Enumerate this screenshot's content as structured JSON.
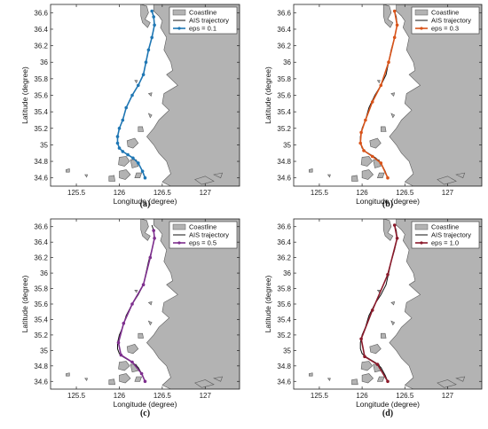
{
  "chart_data": [
    {
      "type": "line",
      "panel_label": "(a)",
      "xlabel": "Longitude (degree)",
      "ylabel": "Latitude (degree)",
      "xlim": [
        125.2,
        127.4
      ],
      "ylim": [
        34.5,
        36.7
      ],
      "xticks": [
        "125.5",
        "126",
        "126.5",
        "127"
      ],
      "yticks": [
        "34.6",
        "34.8",
        "35",
        "35.2",
        "35.4",
        "35.6",
        "35.8",
        "36",
        "36.2",
        "36.4",
        "36.6"
      ],
      "legend": [
        "Coastline",
        "AIS trajectory",
        "eps = 0.1"
      ],
      "series": [
        {
          "name": "AIS trajectory",
          "x": [
            126.38,
            126.4,
            126.41,
            126.38,
            126.34,
            126.31,
            126.28,
            126.22,
            126.15,
            126.08,
            126.04,
            126.0,
            125.98,
            125.98,
            126.0,
            126.04,
            126.1,
            126.16,
            126.22,
            126.27,
            126.3
          ],
          "y": [
            36.62,
            36.55,
            36.45,
            36.3,
            36.15,
            36.0,
            35.85,
            35.72,
            35.6,
            35.45,
            35.3,
            35.2,
            35.1,
            35.02,
            34.96,
            34.92,
            34.88,
            34.84,
            34.78,
            34.68,
            34.6
          ]
        },
        {
          "name": "eps = 0.1",
          "x": [
            126.38,
            126.4,
            126.41,
            126.38,
            126.34,
            126.31,
            126.28,
            126.22,
            126.15,
            126.08,
            126.04,
            126.0,
            125.98,
            125.98,
            126.0,
            126.04,
            126.1,
            126.16,
            126.22,
            126.27,
            126.3
          ],
          "y": [
            36.62,
            36.55,
            36.45,
            36.3,
            36.15,
            36.0,
            35.85,
            35.72,
            35.6,
            35.45,
            35.3,
            35.2,
            35.1,
            35.02,
            34.96,
            34.92,
            34.88,
            34.84,
            34.78,
            34.68,
            34.6
          ]
        }
      ],
      "colors": {
        "trajectory": "#111111",
        "eps": "#1f77b4"
      }
    },
    {
      "type": "line",
      "panel_label": "(b)",
      "xlabel": "Longitude (degree)",
      "ylabel": "Latitude (degree)",
      "xlim": [
        125.2,
        127.4
      ],
      "ylim": [
        34.5,
        36.7
      ],
      "xticks": [
        "125.5",
        "126",
        "126.5",
        "127"
      ],
      "yticks": [
        "34.6",
        "34.8",
        "35",
        "35.2",
        "35.4",
        "35.6",
        "35.8",
        "36",
        "36.2",
        "36.4",
        "36.6"
      ],
      "legend": [
        "Coastline",
        "AIS trajectory",
        "eps = 0.3"
      ],
      "series": [
        {
          "name": "AIS trajectory",
          "x": [
            126.38,
            126.4,
            126.41,
            126.38,
            126.34,
            126.31,
            126.28,
            126.22,
            126.15,
            126.08,
            126.04,
            126.0,
            125.98,
            125.98,
            126.0,
            126.04,
            126.1,
            126.16,
            126.22,
            126.27,
            126.3
          ],
          "y": [
            36.62,
            36.55,
            36.45,
            36.3,
            36.15,
            36.0,
            35.85,
            35.72,
            35.6,
            35.45,
            35.3,
            35.2,
            35.1,
            35.02,
            34.96,
            34.92,
            34.88,
            34.84,
            34.78,
            34.68,
            34.6
          ]
        },
        {
          "name": "eps = 0.3",
          "x": [
            126.38,
            126.41,
            126.38,
            126.31,
            126.22,
            126.12,
            126.04,
            125.99,
            125.98,
            126.02,
            126.12,
            126.22,
            126.3
          ],
          "y": [
            36.62,
            36.45,
            36.3,
            36.0,
            35.72,
            35.52,
            35.3,
            35.15,
            35.02,
            34.93,
            34.86,
            34.78,
            34.6
          ]
        }
      ],
      "colors": {
        "trajectory": "#111111",
        "eps": "#d95319"
      }
    },
    {
      "type": "line",
      "panel_label": "(c)",
      "xlabel": "Longitude (degree)",
      "ylabel": "Latitude (degree)",
      "xlim": [
        125.2,
        127.4
      ],
      "ylim": [
        34.5,
        36.7
      ],
      "xticks": [
        "125.5",
        "126",
        "126.5",
        "127"
      ],
      "yticks": [
        "34.6",
        "34.8",
        "35",
        "35.2",
        "35.4",
        "35.6",
        "35.8",
        "36",
        "36.2",
        "36.4",
        "36.6"
      ],
      "legend": [
        "Coastline",
        "AIS trajectory",
        "eps = 0.5"
      ],
      "series": [
        {
          "name": "AIS trajectory",
          "x": [
            126.38,
            126.4,
            126.41,
            126.38,
            126.34,
            126.31,
            126.28,
            126.22,
            126.15,
            126.08,
            126.04,
            126.0,
            125.98,
            125.98,
            126.0,
            126.04,
            126.1,
            126.16,
            126.22,
            126.27,
            126.3
          ],
          "y": [
            36.62,
            36.55,
            36.45,
            36.3,
            36.15,
            36.0,
            35.85,
            35.72,
            35.6,
            35.45,
            35.3,
            35.2,
            35.1,
            35.02,
            34.96,
            34.92,
            34.88,
            34.84,
            34.78,
            34.68,
            34.6
          ]
        },
        {
          "name": "eps = 0.5",
          "x": [
            126.4,
            126.41,
            126.36,
            126.28,
            126.15,
            126.05,
            125.99,
            126.02,
            126.15,
            126.26,
            126.3
          ],
          "y": [
            36.55,
            36.45,
            36.2,
            35.85,
            35.6,
            35.35,
            35.1,
            34.94,
            34.85,
            34.7,
            34.6
          ]
        }
      ],
      "colors": {
        "trajectory": "#111111",
        "eps": "#7e2f8e"
      }
    },
    {
      "type": "line",
      "panel_label": "(d)",
      "xlabel": "Longitude (degree)",
      "ylabel": "Latitude (degree)",
      "xlim": [
        125.2,
        127.4
      ],
      "ylim": [
        34.5,
        36.7
      ],
      "xticks": [
        "125.5",
        "126",
        "126.5",
        "127"
      ],
      "yticks": [
        "34.6",
        "34.8",
        "35",
        "35.2",
        "35.4",
        "35.6",
        "35.8",
        "36",
        "36.2",
        "36.4",
        "36.6"
      ],
      "legend": [
        "Coastline",
        "AIS trajectory",
        "eps = 1.0"
      ],
      "series": [
        {
          "name": "AIS trajectory",
          "x": [
            126.38,
            126.4,
            126.41,
            126.38,
            126.34,
            126.31,
            126.28,
            126.22,
            126.15,
            126.08,
            126.04,
            126.0,
            125.98,
            125.98,
            126.0,
            126.04,
            126.1,
            126.16,
            126.22,
            126.27,
            126.3
          ],
          "y": [
            36.62,
            36.55,
            36.45,
            36.3,
            36.15,
            36.0,
            35.85,
            35.72,
            35.6,
            35.45,
            35.3,
            35.2,
            35.1,
            35.02,
            34.96,
            34.92,
            34.88,
            34.84,
            34.78,
            34.68,
            34.6
          ]
        },
        {
          "name": "eps = 1.0",
          "x": [
            126.38,
            126.41,
            126.3,
            126.12,
            125.99,
            126.03,
            126.18,
            126.3
          ],
          "y": [
            36.62,
            36.45,
            35.98,
            35.52,
            35.15,
            34.92,
            34.82,
            34.6
          ]
        }
      ],
      "colors": {
        "trajectory": "#111111",
        "eps": "#8b1a2b"
      }
    }
  ],
  "colors": {
    "land": "#b3b3b3",
    "sea": "#ffffff",
    "land_edge": "#5a5a5a"
  }
}
